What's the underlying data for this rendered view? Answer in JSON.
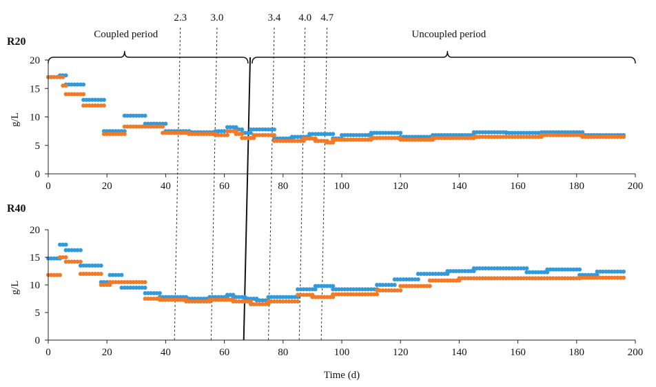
{
  "chart_data": {
    "type": "scatter",
    "xlabel": "Time (d)",
    "xlim": [
      0,
      200
    ],
    "xticks": [
      0,
      20,
      40,
      60,
      80,
      100,
      120,
      140,
      160,
      180,
      200
    ],
    "colors": {
      "series1": "#3399d9",
      "series2": "#f07a28"
    },
    "transition_markers": [
      {
        "label": "2.3",
        "x": 45
      },
      {
        "label": "3.0",
        "x": 57.5
      },
      {
        "label": "3.4",
        "x": 77
      },
      {
        "label": "4.0",
        "x": 87.5
      },
      {
        "label": "4.7",
        "x": 95
      }
    ],
    "period_labels": {
      "coupled": "Coupled period",
      "uncoupled": "Uncoupled period",
      "boundary_x": 69
    },
    "panels": [
      {
        "name": "R20",
        "ylabel": "g/L",
        "ylim": [
          0,
          20
        ],
        "yticks": [
          0,
          5,
          10,
          15,
          20
        ],
        "series": [
          {
            "segments": [
              [
                0,
                4,
                17
              ],
              [
                4,
                6,
                17.3
              ],
              [
                6,
                12,
                15.7
              ],
              [
                12,
                19,
                13
              ],
              [
                19,
                26,
                7.5
              ],
              [
                26,
                33,
                10.2
              ],
              [
                33,
                40,
                8.8
              ],
              [
                40,
                48,
                7.5
              ],
              [
                48,
                57,
                7.3
              ],
              [
                57,
                61,
                7.5
              ],
              [
                61,
                64,
                8.2
              ],
              [
                64,
                66,
                7.8
              ],
              [
                66,
                69,
                7.2
              ],
              [
                69,
                77,
                7.8
              ],
              [
                77,
                83,
                6.2
              ],
              [
                83,
                89,
                6.5
              ],
              [
                89,
                97,
                7.0
              ],
              [
                97,
                100,
                6.2
              ],
              [
                100,
                110,
                6.8
              ],
              [
                110,
                120,
                7.2
              ],
              [
                120,
                131,
                6.5
              ],
              [
                131,
                145,
                6.8
              ],
              [
                145,
                156,
                7.3
              ],
              [
                156,
                168,
                7.2
              ],
              [
                168,
                182,
                7.3
              ],
              [
                182,
                196,
                6.8
              ]
            ]
          },
          {
            "segments": [
              [
                0,
                5,
                17
              ],
              [
                5,
                6,
                15.5
              ],
              [
                6,
                12,
                14
              ],
              [
                12,
                19,
                12
              ],
              [
                19,
                26,
                7.0
              ],
              [
                26,
                39,
                8.3
              ],
              [
                39,
                48,
                7.2
              ],
              [
                48,
                57,
                7.0
              ],
              [
                57,
                61,
                6.8
              ],
              [
                61,
                64,
                7.5
              ],
              [
                64,
                66,
                7.0
              ],
              [
                66,
                70,
                6.3
              ],
              [
                70,
                77,
                6.8
              ],
              [
                77,
                87,
                5.8
              ],
              [
                87,
                91,
                6.2
              ],
              [
                91,
                95,
                5.8
              ],
              [
                95,
                97,
                5.5
              ],
              [
                97,
                110,
                6.0
              ],
              [
                110,
                120,
                6.3
              ],
              [
                120,
                131,
                6.0
              ],
              [
                131,
                145,
                6.3
              ],
              [
                145,
                168,
                6.5
              ],
              [
                168,
                182,
                6.8
              ],
              [
                182,
                196,
                6.5
              ]
            ]
          }
        ]
      },
      {
        "name": "R40",
        "ylabel": "g/L",
        "ylim": [
          0,
          20
        ],
        "yticks": [
          0,
          5,
          10,
          15,
          20
        ],
        "series": [
          {
            "segments": [
              [
                0,
                4,
                14.8
              ],
              [
                4,
                6,
                17.3
              ],
              [
                6,
                11,
                16.3
              ],
              [
                11,
                18,
                13.5
              ],
              [
                18,
                21,
                10.5
              ],
              [
                21,
                25,
                11.8
              ],
              [
                25,
                33,
                9.5
              ],
              [
                33,
                38,
                8.5
              ],
              [
                38,
                47,
                7.8
              ],
              [
                47,
                55,
                7.5
              ],
              [
                55,
                61,
                7.8
              ],
              [
                61,
                63,
                8.2
              ],
              [
                63,
                67,
                7.8
              ],
              [
                67,
                71,
                7.5
              ],
              [
                71,
                75,
                7.2
              ],
              [
                75,
                85,
                7.8
              ],
              [
                85,
                91,
                9.2
              ],
              [
                91,
                97,
                9.8
              ],
              [
                97,
                112,
                9.2
              ],
              [
                112,
                118,
                10.0
              ],
              [
                118,
                126,
                11.0
              ],
              [
                126,
                136,
                12.0
              ],
              [
                136,
                145,
                12.5
              ],
              [
                145,
                163,
                13.0
              ],
              [
                163,
                170,
                12.3
              ],
              [
                170,
                181,
                12.8
              ],
              [
                181,
                187,
                11.8
              ],
              [
                187,
                196,
                12.4
              ]
            ]
          },
          {
            "segments": [
              [
                0,
                4,
                11.8
              ],
              [
                4,
                6,
                15.0
              ],
              [
                6,
                11,
                14.2
              ],
              [
                11,
                18,
                12.0
              ],
              [
                18,
                21,
                10.0
              ],
              [
                21,
                33,
                10.5
              ],
              [
                33,
                38,
                7.5
              ],
              [
                38,
                47,
                7.3
              ],
              [
                47,
                55,
                7.0
              ],
              [
                55,
                63,
                7.3
              ],
              [
                63,
                69,
                7.0
              ],
              [
                69,
                75,
                6.5
              ],
              [
                75,
                85,
                7.0
              ],
              [
                85,
                90,
                8.2
              ],
              [
                90,
                97,
                7.8
              ],
              [
                97,
                112,
                8.3
              ],
              [
                112,
                120,
                9.0
              ],
              [
                120,
                130,
                9.8
              ],
              [
                130,
                140,
                10.8
              ],
              [
                140,
                181,
                11.2
              ],
              [
                181,
                196,
                11.3
              ]
            ]
          }
        ]
      }
    ]
  }
}
